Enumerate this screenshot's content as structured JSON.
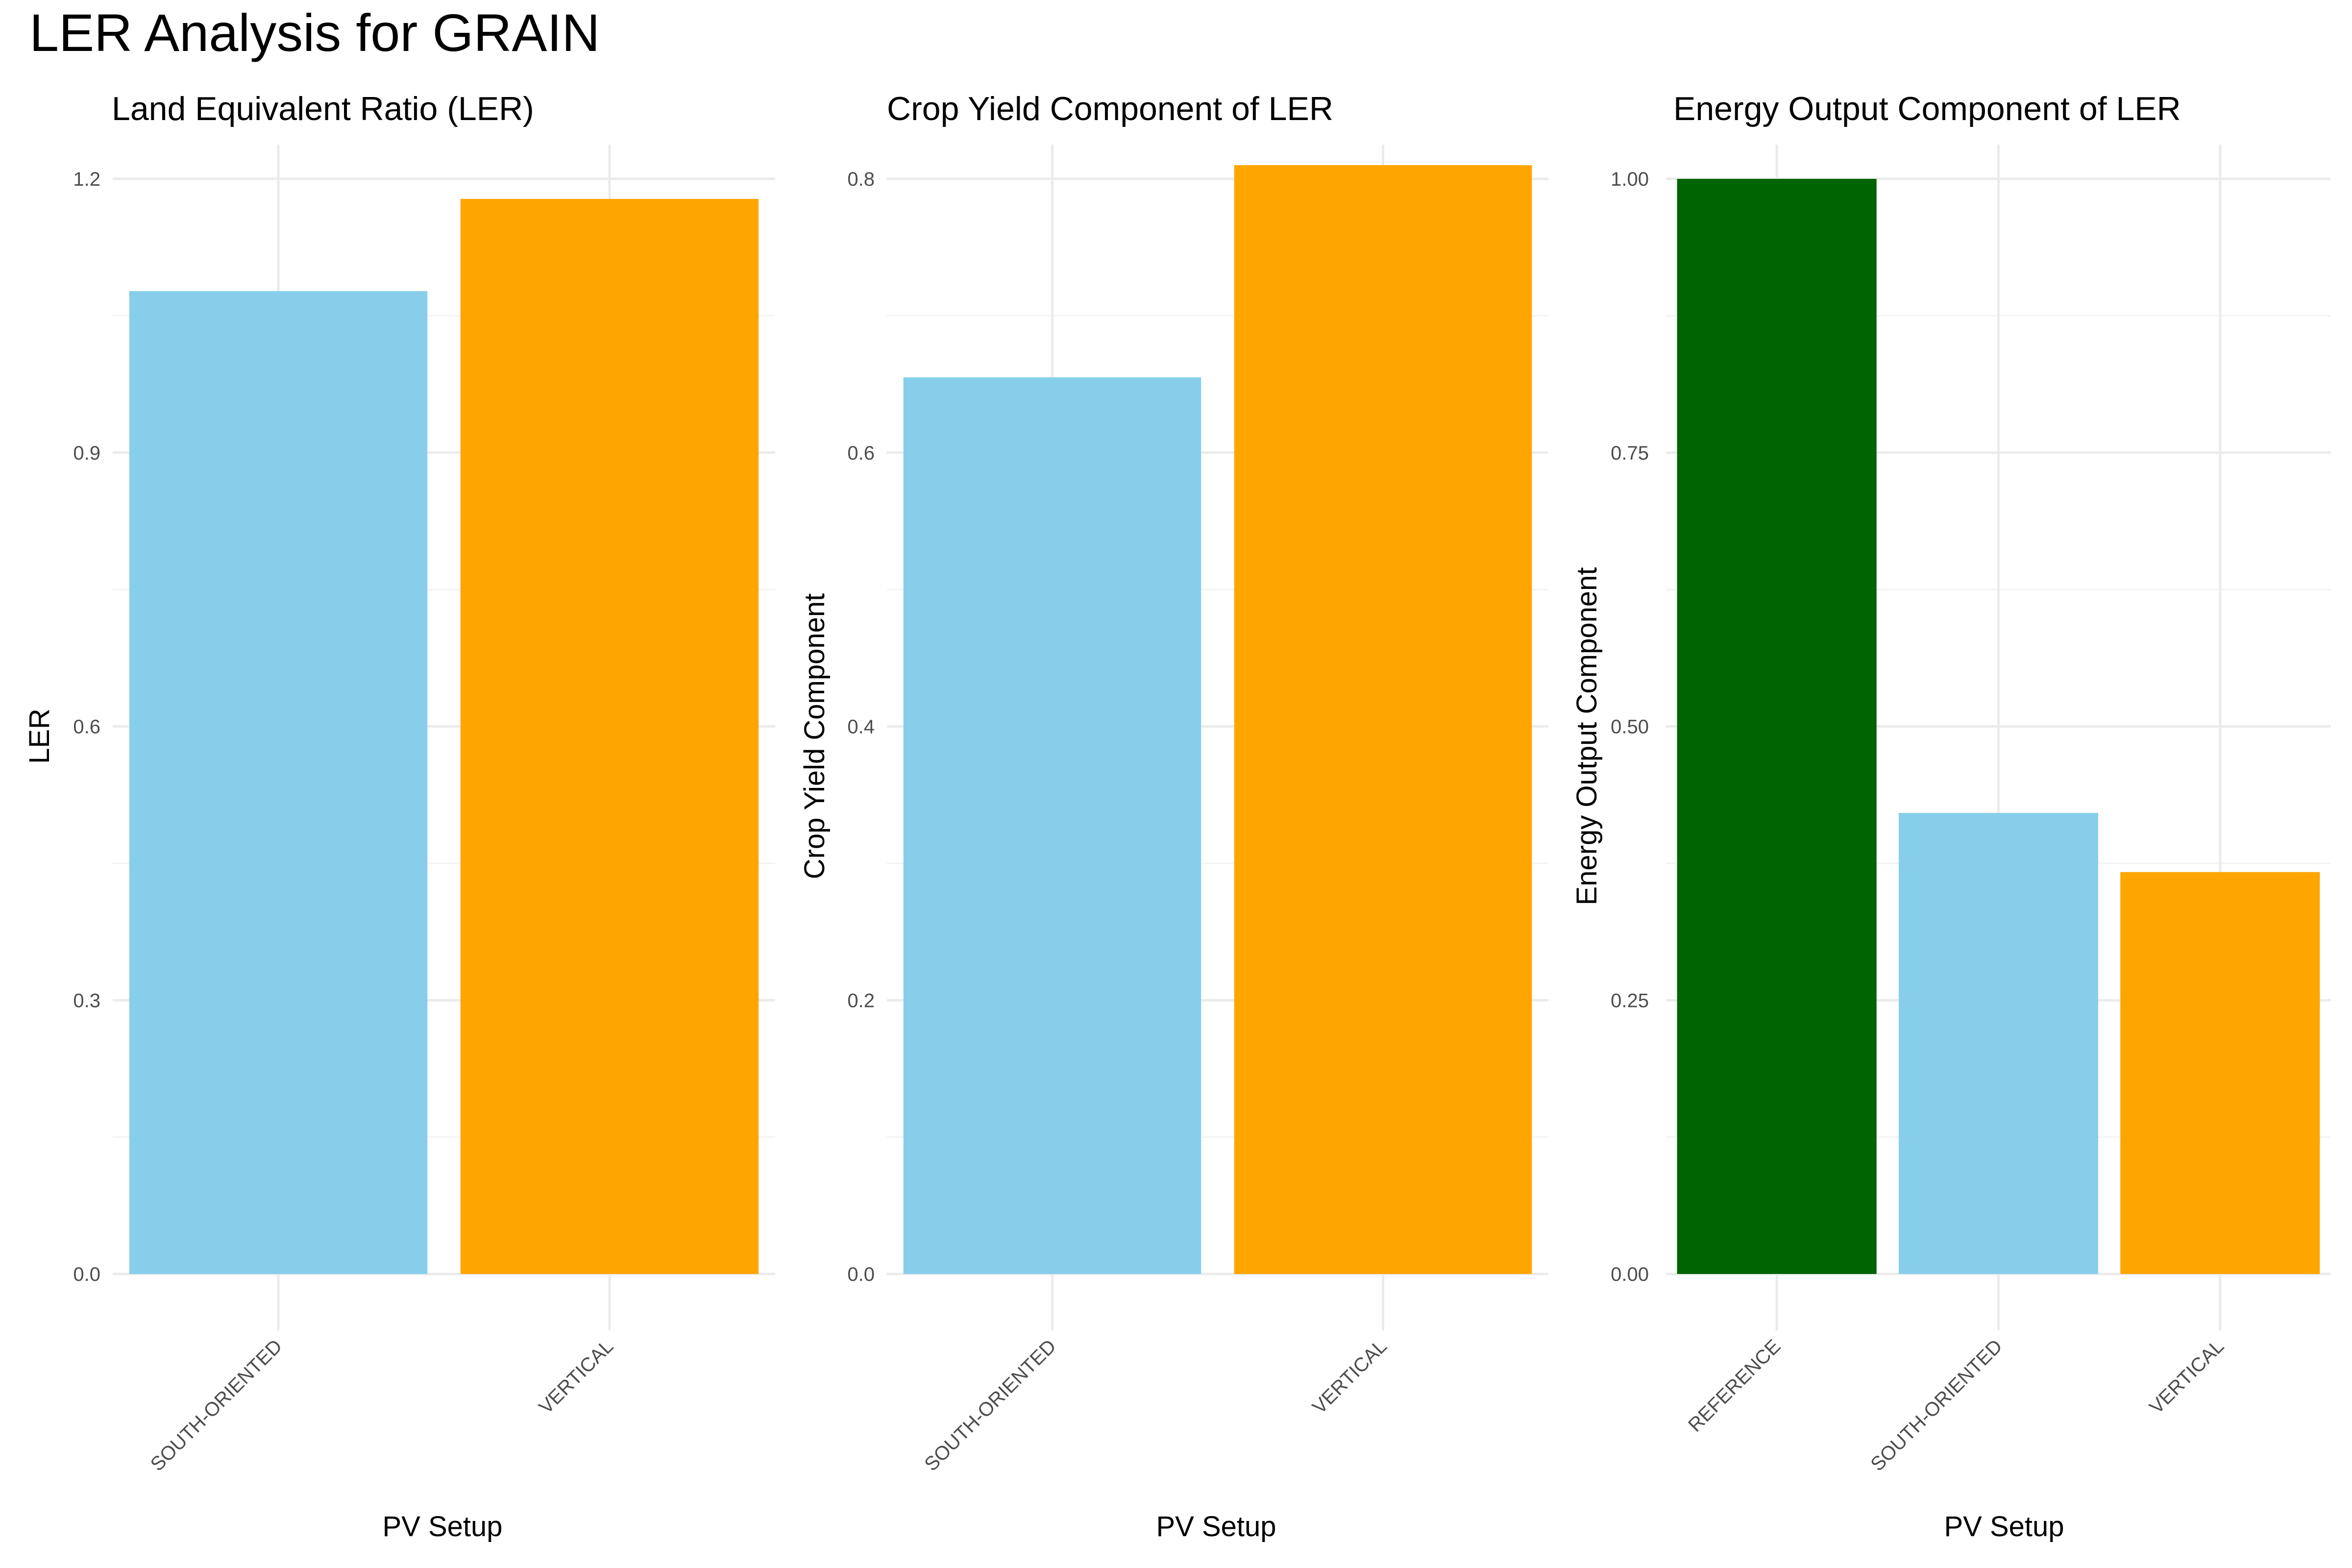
{
  "title": "LER Analysis for GRAIN",
  "colors": {
    "REFERENCE": "#006400",
    "SOUTH-ORIENTED": "#87CEEB",
    "VERTICAL": "#FFA500"
  },
  "chart_data": [
    {
      "type": "bar",
      "title": "Land Equivalent Ratio (LER)",
      "xlabel": "PV Setup",
      "ylabel": "LER",
      "categories": [
        "SOUTH-ORIENTED",
        "VERTICAL"
      ],
      "values": [
        1.077,
        1.178
      ],
      "ylim": [
        0,
        1.2
      ],
      "y_ticks": [
        0.0,
        0.3,
        0.6,
        0.9,
        1.2
      ],
      "y_tick_labels": [
        "0.0",
        "0.3",
        "0.6",
        "0.9",
        "1.2"
      ],
      "grid": true
    },
    {
      "type": "bar",
      "title": "Crop Yield Component of LER",
      "xlabel": "PV Setup",
      "ylabel": "Crop Yield Component",
      "categories": [
        "SOUTH-ORIENTED",
        "VERTICAL"
      ],
      "values": [
        0.655,
        0.81
      ],
      "ylim": [
        0,
        0.8
      ],
      "y_ticks": [
        0.0,
        0.2,
        0.4,
        0.6,
        0.8
      ],
      "y_tick_labels": [
        "0.0",
        "0.2",
        "0.4",
        "0.6",
        "0.8"
      ],
      "grid": true
    },
    {
      "type": "bar",
      "title": "Energy Output Component of LER",
      "xlabel": "PV Setup",
      "ylabel": "Energy Output Component",
      "categories": [
        "REFERENCE",
        "SOUTH-ORIENTED",
        "VERTICAL"
      ],
      "values": [
        1.0,
        0.421,
        0.367
      ],
      "ylim": [
        0,
        1.0
      ],
      "y_ticks": [
        0.0,
        0.25,
        0.5,
        0.75,
        1.0
      ],
      "y_tick_labels": [
        "0.00",
        "0.25",
        "0.50",
        "0.75",
        "1.00"
      ],
      "grid": true
    }
  ]
}
